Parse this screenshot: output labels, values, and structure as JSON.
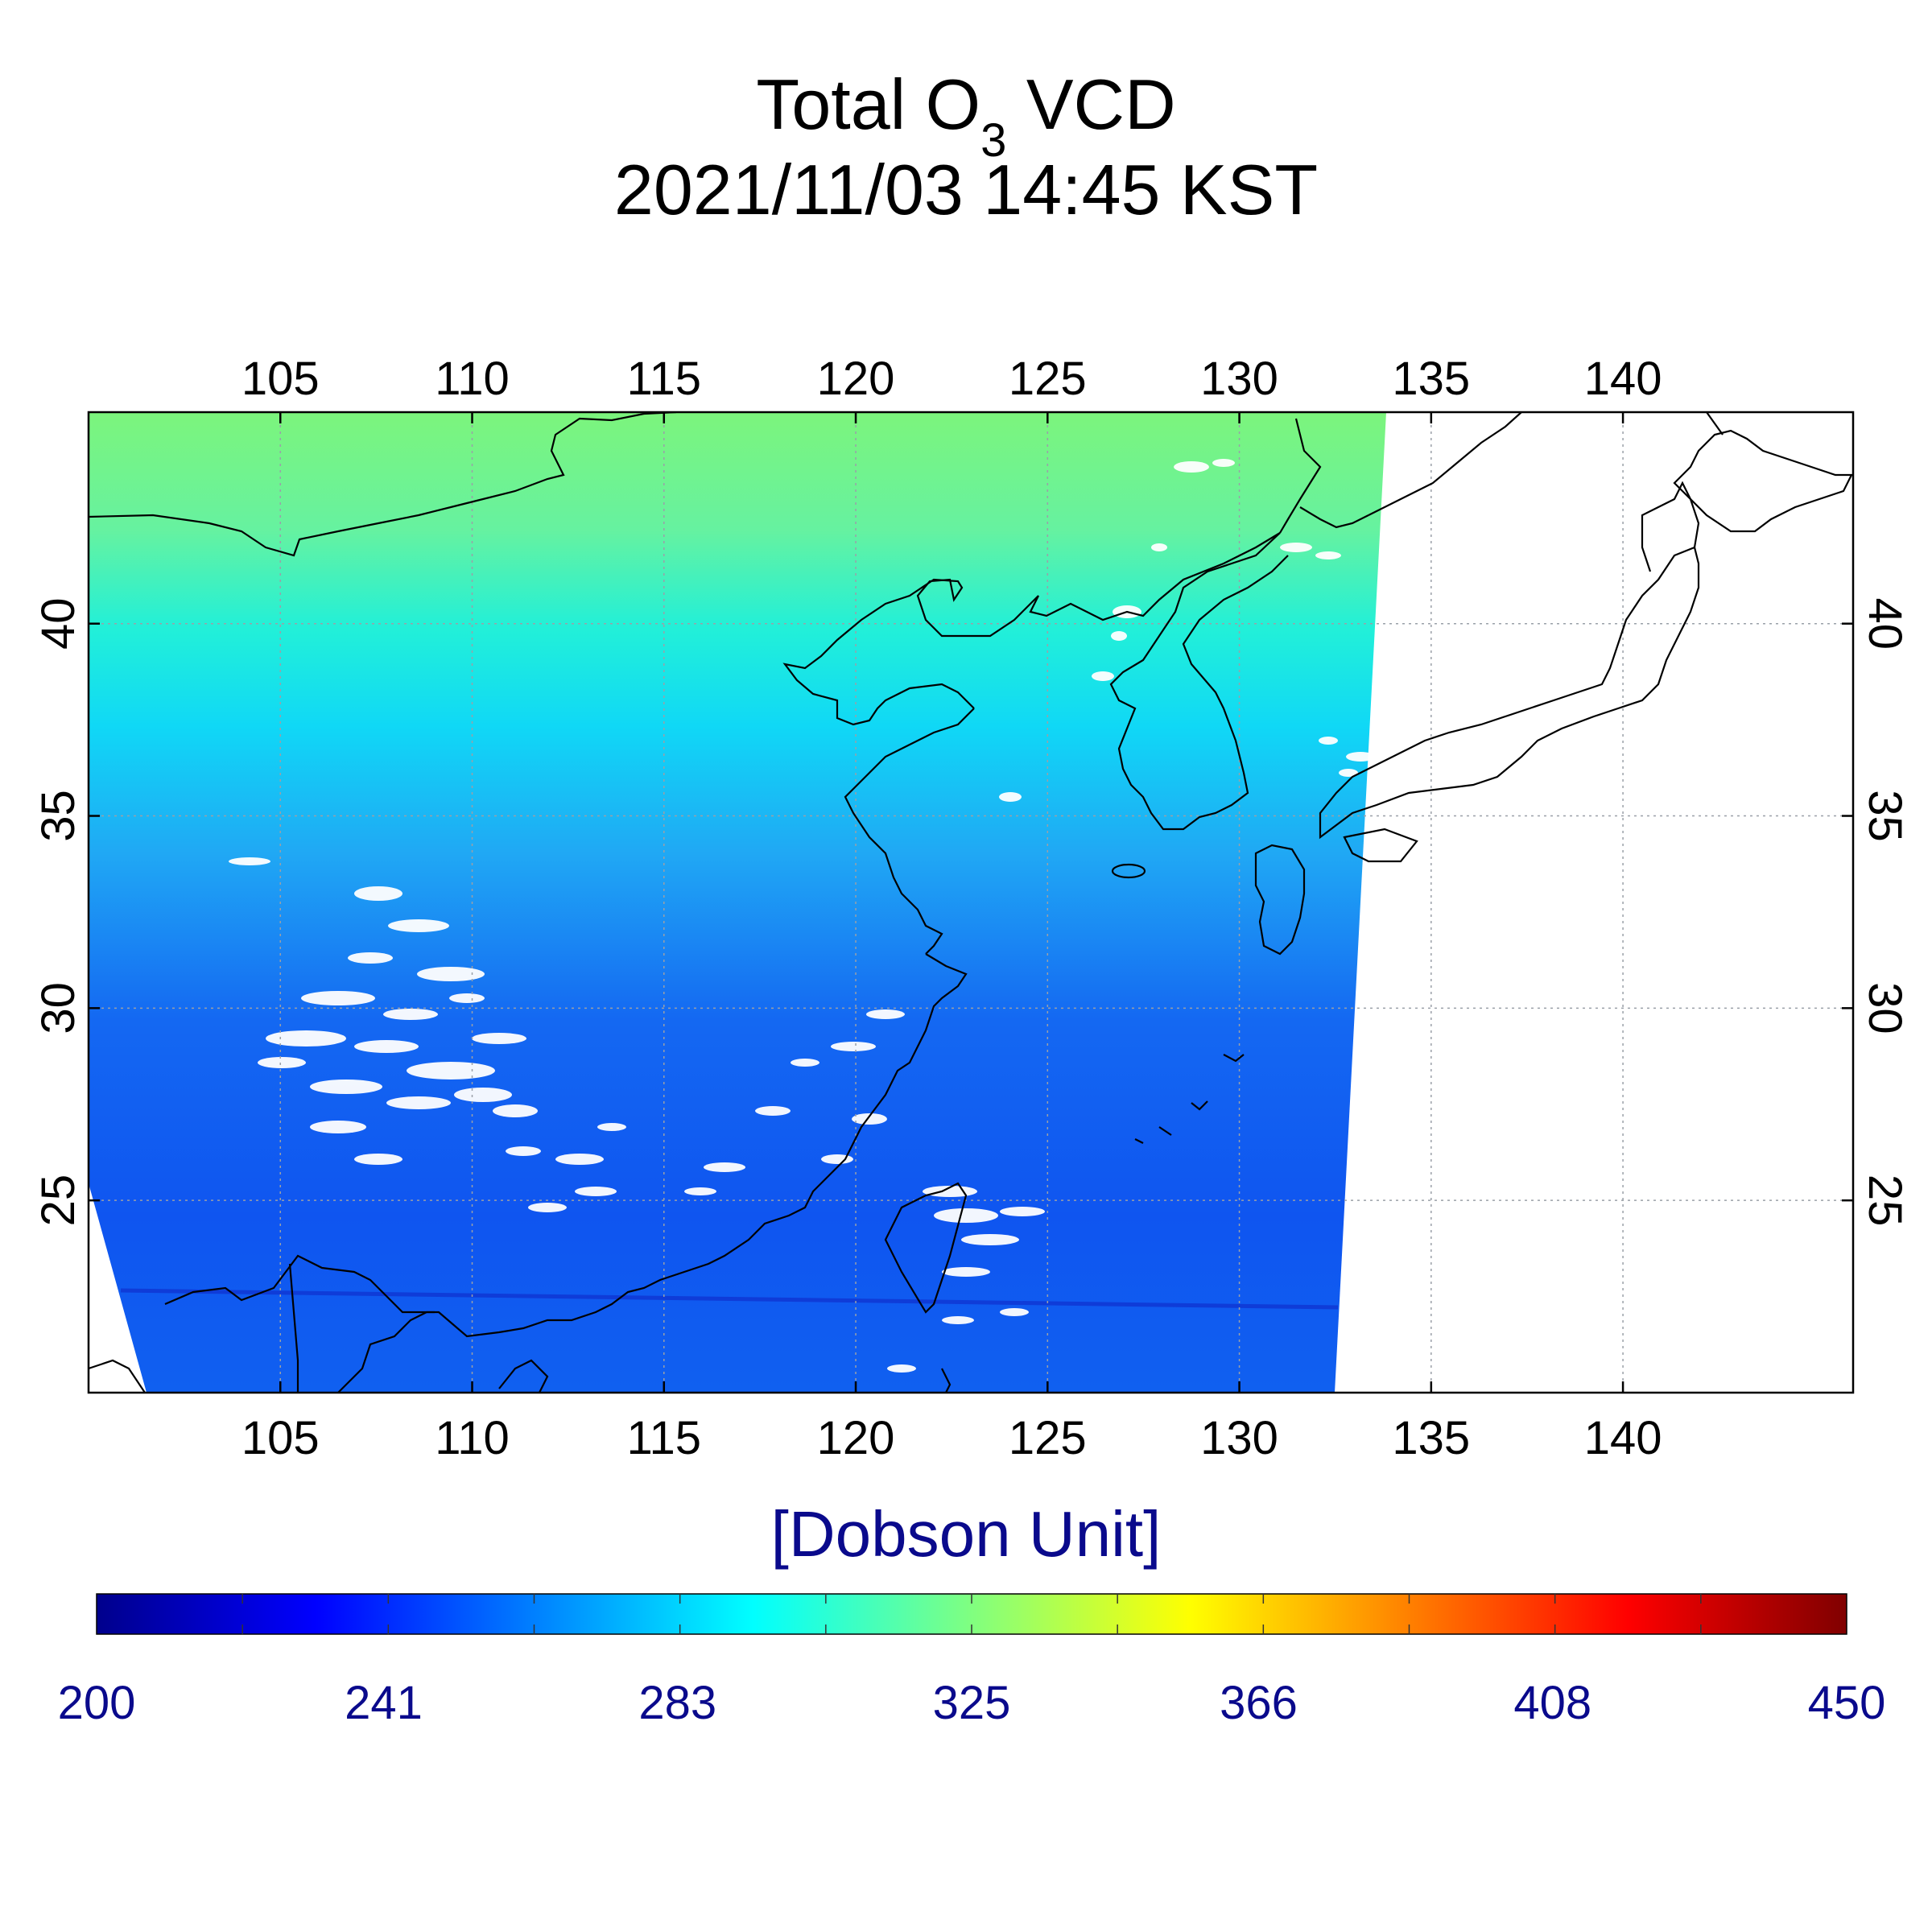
{
  "title": {
    "main": "Total O",
    "subscript": "3",
    "suffix": " VCD",
    "datetime": "2021/11/03 14:45 KST"
  },
  "map": {
    "lon_range": [
      100,
      146
    ],
    "lat_range": [
      20,
      45.5
    ],
    "lon_ticks": [
      "105",
      "110",
      "115",
      "120",
      "125",
      "130",
      "135",
      "140"
    ],
    "lat_ticks": [
      "40",
      "35",
      "30",
      "25"
    ],
    "grid": true,
    "swath_east_edge_lon": [
      133,
      132
    ],
    "missing_data_color": "#ffffff"
  },
  "colorbar": {
    "unit": "[Dobson Unit]",
    "min": 200,
    "max": 450,
    "labels": [
      "200",
      "241",
      "283",
      "325",
      "366",
      "408",
      "450"
    ],
    "colors": [
      "#00008c",
      "#0000ff",
      "#0080ff",
      "#00ffff",
      "#80ff80",
      "#ffff00",
      "#ff8000",
      "#ff0000",
      "#800000"
    ]
  }
}
